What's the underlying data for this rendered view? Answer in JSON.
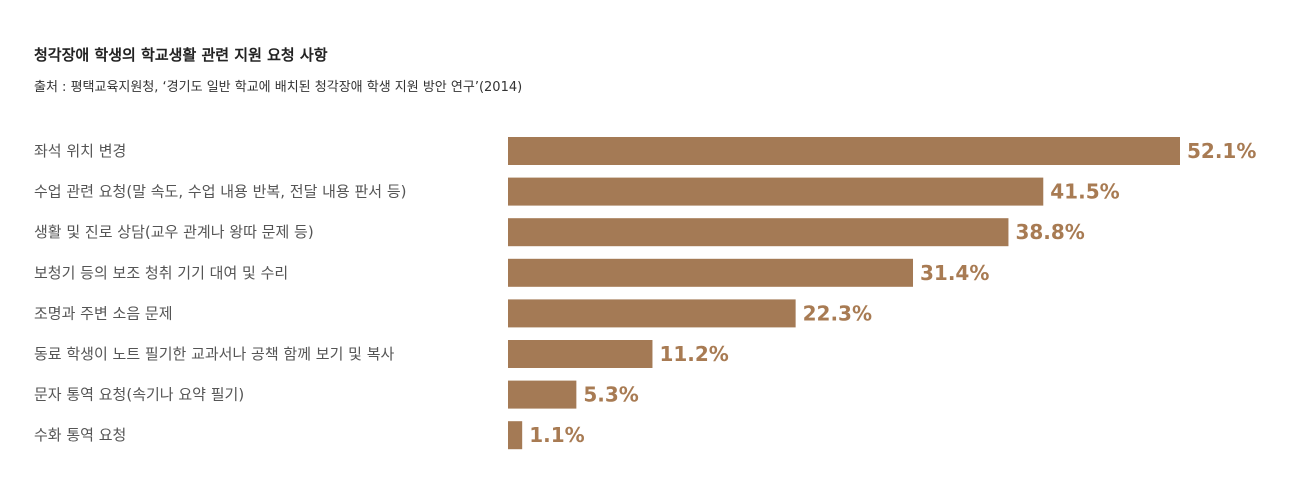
{
  "header": {
    "title": "청각장애 학생의 학교생활 관련 지원 요청 사항",
    "source": "출처 : 평택교육지원청, ‘경기도 일반 학교에 배치된 청각장애 학생 지원 방안 연구’(2014)"
  },
  "colors": {
    "bar": "#a47a55",
    "value_label": "#a87b53",
    "category_label": "#555555"
  },
  "chart_data": {
    "type": "bar",
    "orientation": "horizontal",
    "categories": [
      "좌석 위치 변경",
      "수업 관련 요청(말 속도, 수업 내용 반복, 전달 내용 판서 등)",
      "생활 및 진로 상담(교우 관계나 왕따 문제 등)",
      "보청기 등의 보조 청취 기기 대여 및 수리",
      "조명과 주변 소음 문제",
      "동료 학생이 노트 필기한 교과서나 공책 함께 보기 및 복사",
      "문자 통역 요청(속기나 요약 필기)",
      "수화 통역 요청"
    ],
    "values": [
      52.1,
      41.5,
      38.8,
      31.4,
      22.3,
      11.2,
      5.3,
      1.1
    ],
    "value_labels": [
      "52.1%",
      "41.5%",
      "38.8%",
      "31.4%",
      "22.3%",
      "11.2%",
      "5.3%",
      "1.1%"
    ],
    "unit": "%",
    "xlim": [
      0,
      52.1
    ],
    "grid": false,
    "legend": "none"
  }
}
